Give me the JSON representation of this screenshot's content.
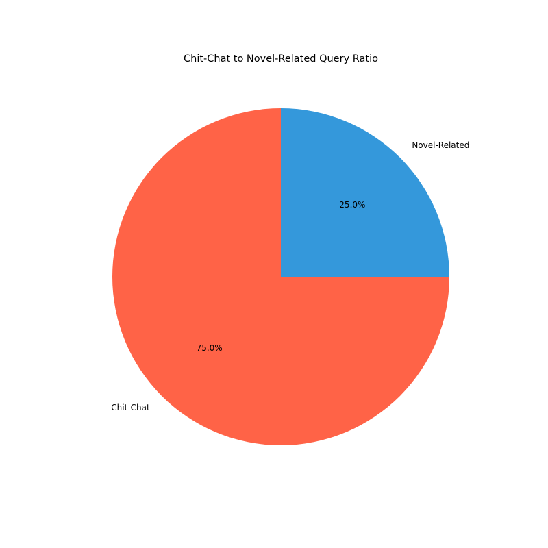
{
  "chart_data": {
    "type": "pie",
    "title": "Chit-Chat to Novel-Related Query Ratio",
    "slices": [
      {
        "label": "Novel-Related",
        "value": 25.0,
        "percent_label": "25.0%",
        "color": "#3498db"
      },
      {
        "label": "Chit-Chat",
        "value": 75.0,
        "percent_label": "75.0%",
        "color": "#ff6347"
      }
    ],
    "start_angle_deg": 90,
    "direction": "clockwise",
    "legend": "none"
  }
}
